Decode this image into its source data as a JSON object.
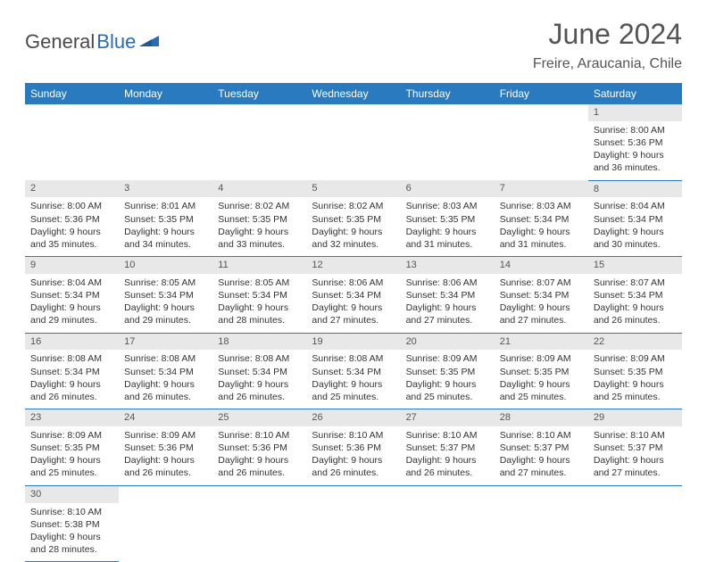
{
  "header": {
    "logo_gray": "General",
    "logo_blue": "Blue",
    "month_title": "June 2024",
    "location": "Freire, Araucania, Chile"
  },
  "style": {
    "header_bg": "#2a7ac0",
    "header_text": "#ffffff",
    "daynum_bg": "#e8e8e8",
    "row_border": "#2a7ac0",
    "body_text": "#333333",
    "title_color": "#555555",
    "font_family": "Arial, Helvetica, sans-serif",
    "month_fontsize": 32,
    "location_fontsize": 16,
    "cell_fontsize": 10.5
  },
  "day_headers": [
    "Sunday",
    "Monday",
    "Tuesday",
    "Wednesday",
    "Thursday",
    "Friday",
    "Saturday"
  ],
  "weeks": [
    {
      "nums": [
        "",
        "",
        "",
        "",
        "",
        "",
        "1"
      ],
      "cells": [
        null,
        null,
        null,
        null,
        null,
        null,
        {
          "sunrise": "Sunrise: 8:00 AM",
          "sunset": "Sunset: 5:36 PM",
          "day1": "Daylight: 9 hours",
          "day2": "and 36 minutes."
        }
      ]
    },
    {
      "nums": [
        "2",
        "3",
        "4",
        "5",
        "6",
        "7",
        "8"
      ],
      "cells": [
        {
          "sunrise": "Sunrise: 8:00 AM",
          "sunset": "Sunset: 5:36 PM",
          "day1": "Daylight: 9 hours",
          "day2": "and 35 minutes."
        },
        {
          "sunrise": "Sunrise: 8:01 AM",
          "sunset": "Sunset: 5:35 PM",
          "day1": "Daylight: 9 hours",
          "day2": "and 34 minutes."
        },
        {
          "sunrise": "Sunrise: 8:02 AM",
          "sunset": "Sunset: 5:35 PM",
          "day1": "Daylight: 9 hours",
          "day2": "and 33 minutes."
        },
        {
          "sunrise": "Sunrise: 8:02 AM",
          "sunset": "Sunset: 5:35 PM",
          "day1": "Daylight: 9 hours",
          "day2": "and 32 minutes."
        },
        {
          "sunrise": "Sunrise: 8:03 AM",
          "sunset": "Sunset: 5:35 PM",
          "day1": "Daylight: 9 hours",
          "day2": "and 31 minutes."
        },
        {
          "sunrise": "Sunrise: 8:03 AM",
          "sunset": "Sunset: 5:34 PM",
          "day1": "Daylight: 9 hours",
          "day2": "and 31 minutes."
        },
        {
          "sunrise": "Sunrise: 8:04 AM",
          "sunset": "Sunset: 5:34 PM",
          "day1": "Daylight: 9 hours",
          "day2": "and 30 minutes."
        }
      ]
    },
    {
      "nums": [
        "9",
        "10",
        "11",
        "12",
        "13",
        "14",
        "15"
      ],
      "cells": [
        {
          "sunrise": "Sunrise: 8:04 AM",
          "sunset": "Sunset: 5:34 PM",
          "day1": "Daylight: 9 hours",
          "day2": "and 29 minutes."
        },
        {
          "sunrise": "Sunrise: 8:05 AM",
          "sunset": "Sunset: 5:34 PM",
          "day1": "Daylight: 9 hours",
          "day2": "and 29 minutes."
        },
        {
          "sunrise": "Sunrise: 8:05 AM",
          "sunset": "Sunset: 5:34 PM",
          "day1": "Daylight: 9 hours",
          "day2": "and 28 minutes."
        },
        {
          "sunrise": "Sunrise: 8:06 AM",
          "sunset": "Sunset: 5:34 PM",
          "day1": "Daylight: 9 hours",
          "day2": "and 27 minutes."
        },
        {
          "sunrise": "Sunrise: 8:06 AM",
          "sunset": "Sunset: 5:34 PM",
          "day1": "Daylight: 9 hours",
          "day2": "and 27 minutes."
        },
        {
          "sunrise": "Sunrise: 8:07 AM",
          "sunset": "Sunset: 5:34 PM",
          "day1": "Daylight: 9 hours",
          "day2": "and 27 minutes."
        },
        {
          "sunrise": "Sunrise: 8:07 AM",
          "sunset": "Sunset: 5:34 PM",
          "day1": "Daylight: 9 hours",
          "day2": "and 26 minutes."
        }
      ]
    },
    {
      "nums": [
        "16",
        "17",
        "18",
        "19",
        "20",
        "21",
        "22"
      ],
      "cells": [
        {
          "sunrise": "Sunrise: 8:08 AM",
          "sunset": "Sunset: 5:34 PM",
          "day1": "Daylight: 9 hours",
          "day2": "and 26 minutes."
        },
        {
          "sunrise": "Sunrise: 8:08 AM",
          "sunset": "Sunset: 5:34 PM",
          "day1": "Daylight: 9 hours",
          "day2": "and 26 minutes."
        },
        {
          "sunrise": "Sunrise: 8:08 AM",
          "sunset": "Sunset: 5:34 PM",
          "day1": "Daylight: 9 hours",
          "day2": "and 26 minutes."
        },
        {
          "sunrise": "Sunrise: 8:08 AM",
          "sunset": "Sunset: 5:34 PM",
          "day1": "Daylight: 9 hours",
          "day2": "and 25 minutes."
        },
        {
          "sunrise": "Sunrise: 8:09 AM",
          "sunset": "Sunset: 5:35 PM",
          "day1": "Daylight: 9 hours",
          "day2": "and 25 minutes."
        },
        {
          "sunrise": "Sunrise: 8:09 AM",
          "sunset": "Sunset: 5:35 PM",
          "day1": "Daylight: 9 hours",
          "day2": "and 25 minutes."
        },
        {
          "sunrise": "Sunrise: 8:09 AM",
          "sunset": "Sunset: 5:35 PM",
          "day1": "Daylight: 9 hours",
          "day2": "and 25 minutes."
        }
      ]
    },
    {
      "nums": [
        "23",
        "24",
        "25",
        "26",
        "27",
        "28",
        "29"
      ],
      "cells": [
        {
          "sunrise": "Sunrise: 8:09 AM",
          "sunset": "Sunset: 5:35 PM",
          "day1": "Daylight: 9 hours",
          "day2": "and 25 minutes."
        },
        {
          "sunrise": "Sunrise: 8:09 AM",
          "sunset": "Sunset: 5:36 PM",
          "day1": "Daylight: 9 hours",
          "day2": "and 26 minutes."
        },
        {
          "sunrise": "Sunrise: 8:10 AM",
          "sunset": "Sunset: 5:36 PM",
          "day1": "Daylight: 9 hours",
          "day2": "and 26 minutes."
        },
        {
          "sunrise": "Sunrise: 8:10 AM",
          "sunset": "Sunset: 5:36 PM",
          "day1": "Daylight: 9 hours",
          "day2": "and 26 minutes."
        },
        {
          "sunrise": "Sunrise: 8:10 AM",
          "sunset": "Sunset: 5:37 PM",
          "day1": "Daylight: 9 hours",
          "day2": "and 26 minutes."
        },
        {
          "sunrise": "Sunrise: 8:10 AM",
          "sunset": "Sunset: 5:37 PM",
          "day1": "Daylight: 9 hours",
          "day2": "and 27 minutes."
        },
        {
          "sunrise": "Sunrise: 8:10 AM",
          "sunset": "Sunset: 5:37 PM",
          "day1": "Daylight: 9 hours",
          "day2": "and 27 minutes."
        }
      ]
    },
    {
      "nums": [
        "30",
        "",
        "",
        "",
        "",
        "",
        ""
      ],
      "cells": [
        {
          "sunrise": "Sunrise: 8:10 AM",
          "sunset": "Sunset: 5:38 PM",
          "day1": "Daylight: 9 hours",
          "day2": "and 28 minutes."
        },
        null,
        null,
        null,
        null,
        null,
        null
      ]
    }
  ]
}
